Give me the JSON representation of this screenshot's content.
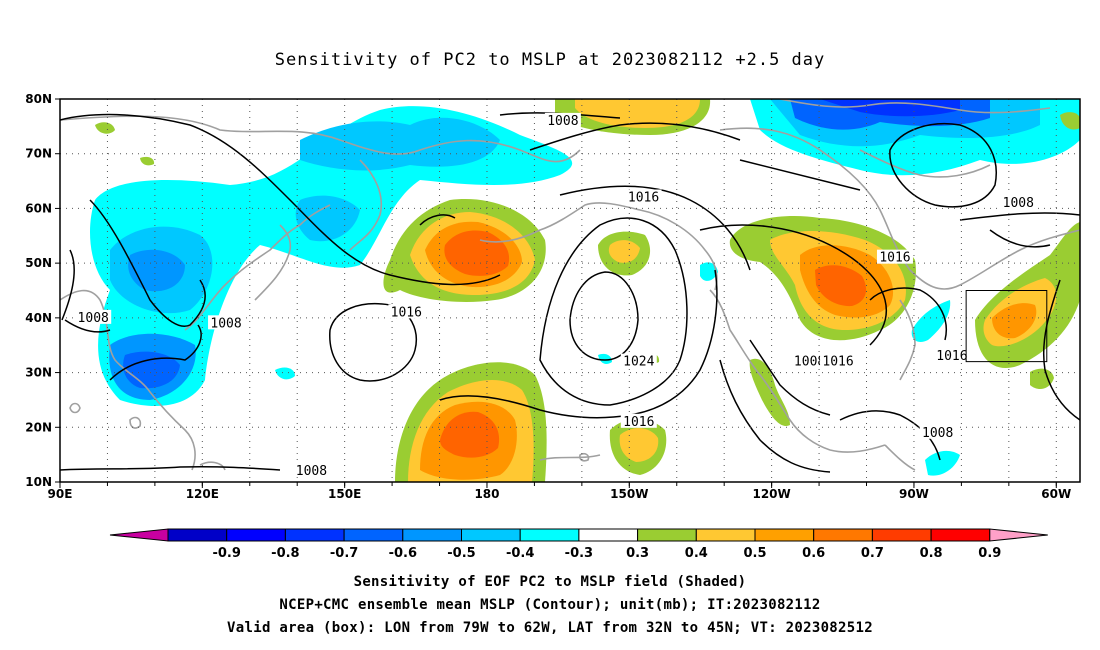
{
  "title": "Sensitivity of PC2 to MSLP at 2023082112 +2.5 day",
  "map": {
    "lat_range": [
      10,
      80
    ],
    "lon_range": [
      90,
      305
    ],
    "lat_ticks": [
      {
        "value": 80,
        "label": "80N"
      },
      {
        "value": 70,
        "label": "70N"
      },
      {
        "value": 60,
        "label": "60N"
      },
      {
        "value": 50,
        "label": "50N"
      },
      {
        "value": 40,
        "label": "40N"
      },
      {
        "value": 30,
        "label": "30N"
      },
      {
        "value": 20,
        "label": "20N"
      },
      {
        "value": 10,
        "label": "10N"
      }
    ],
    "lon_ticks": [
      {
        "value": 90,
        "label": "90E"
      },
      {
        "value": 120,
        "label": "120E"
      },
      {
        "value": 150,
        "label": "150E"
      },
      {
        "value": 180,
        "label": "180"
      },
      {
        "value": 210,
        "label": "150W"
      },
      {
        "value": 240,
        "label": "120W"
      },
      {
        "value": 270,
        "label": "90W"
      },
      {
        "value": 300,
        "label": "60W"
      }
    ],
    "grid_lines": "dotted",
    "valid_box": {
      "lon_min": 281,
      "lon_max": 298,
      "lat_min": 32,
      "lat_max": 45
    },
    "contour_labels": [
      {
        "text": "1008",
        "lon": 196,
        "lat": 76
      },
      {
        "text": "1016",
        "lon": 213,
        "lat": 62
      },
      {
        "text": "1008",
        "lon": 292,
        "lat": 61
      },
      {
        "text": "1016",
        "lon": 266,
        "lat": 51
      },
      {
        "text": "1008",
        "lon": 97,
        "lat": 40
      },
      {
        "text": "1008",
        "lon": 125,
        "lat": 39
      },
      {
        "text": "1016",
        "lon": 163,
        "lat": 41
      },
      {
        "text": "1024",
        "lon": 212,
        "lat": 32
      },
      {
        "text": "1008",
        "lon": 248,
        "lat": 32
      },
      {
        "text": "1016",
        "lon": 254,
        "lat": 32
      },
      {
        "text": "1016",
        "lon": 278,
        "lat": 33
      },
      {
        "text": "1016",
        "lon": 212,
        "lat": 21
      },
      {
        "text": "1008",
        "lon": 275,
        "lat": 19
      },
      {
        "text": "1008",
        "lon": 143,
        "lat": 12
      }
    ],
    "shading_colors": {
      "neg_03_04": "#00ffff",
      "neg_04_05": "#00c8ff",
      "neg_05_06": "#0096ff",
      "neg_06_07": "#0064ff",
      "neg_07_08": "#0032ff",
      "pos_03_04": "#9acd32",
      "pos_04_05": "#ffc832",
      "pos_05_06": "#ff9600",
      "pos_06_07": "#ff6400"
    }
  },
  "colorbar": {
    "ticks": [
      "-0.9",
      "-0.8",
      "-0.7",
      "-0.6",
      "-0.5",
      "-0.4",
      "-0.3",
      "0.3",
      "0.4",
      "0.5",
      "0.6",
      "0.7",
      "0.8",
      "0.9"
    ],
    "colors": [
      "#0000c8",
      "#0000ff",
      "#0032ff",
      "#0064ff",
      "#0096ff",
      "#00c8ff",
      "#00ffff",
      "#ffffff",
      "#9acd32",
      "#ffc832",
      "#ffa000",
      "#ff7800",
      "#ff3c00",
      "#ff0000"
    ],
    "left_arrow_color": "#c800a0",
    "right_arrow_color": "#ffa0c8"
  },
  "captions": {
    "line1": "Sensitivity of EOF PC2 to MSLP field (Shaded)",
    "line2": "NCEP+CMC ensemble mean MSLP (Contour); unit(mb); IT:2023082112",
    "line3": "Valid area (box): LON from 79W to 62W, LAT from 32N to 45N; VT: 2023082512"
  }
}
